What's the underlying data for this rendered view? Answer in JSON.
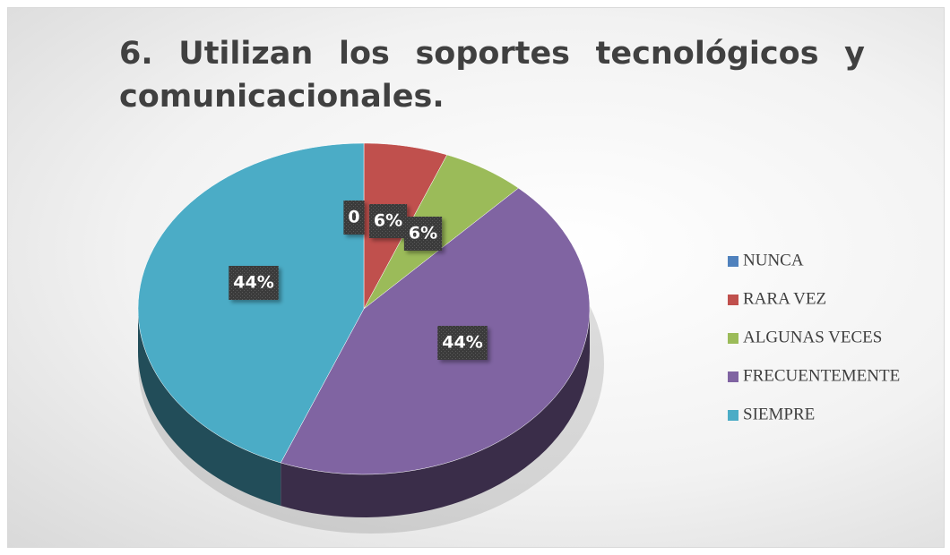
{
  "chart_data": {
    "type": "pie",
    "title": "6. Utilizan los soportes tecnológicos y comunicacionales.",
    "categories": [
      "NUNCA",
      "RARA VEZ",
      "ALGUNAS VECES",
      "FRECUENTEMENTE",
      "SIEMPRE"
    ],
    "values": [
      0,
      6,
      6,
      44,
      44
    ],
    "value_labels": [
      "0",
      "6%",
      "6%",
      "44%",
      "44%"
    ],
    "colors": [
      "#4f81bd",
      "#c0504d",
      "#9bbb59",
      "#8064a2",
      "#4bacc6"
    ],
    "legend": "right"
  }
}
